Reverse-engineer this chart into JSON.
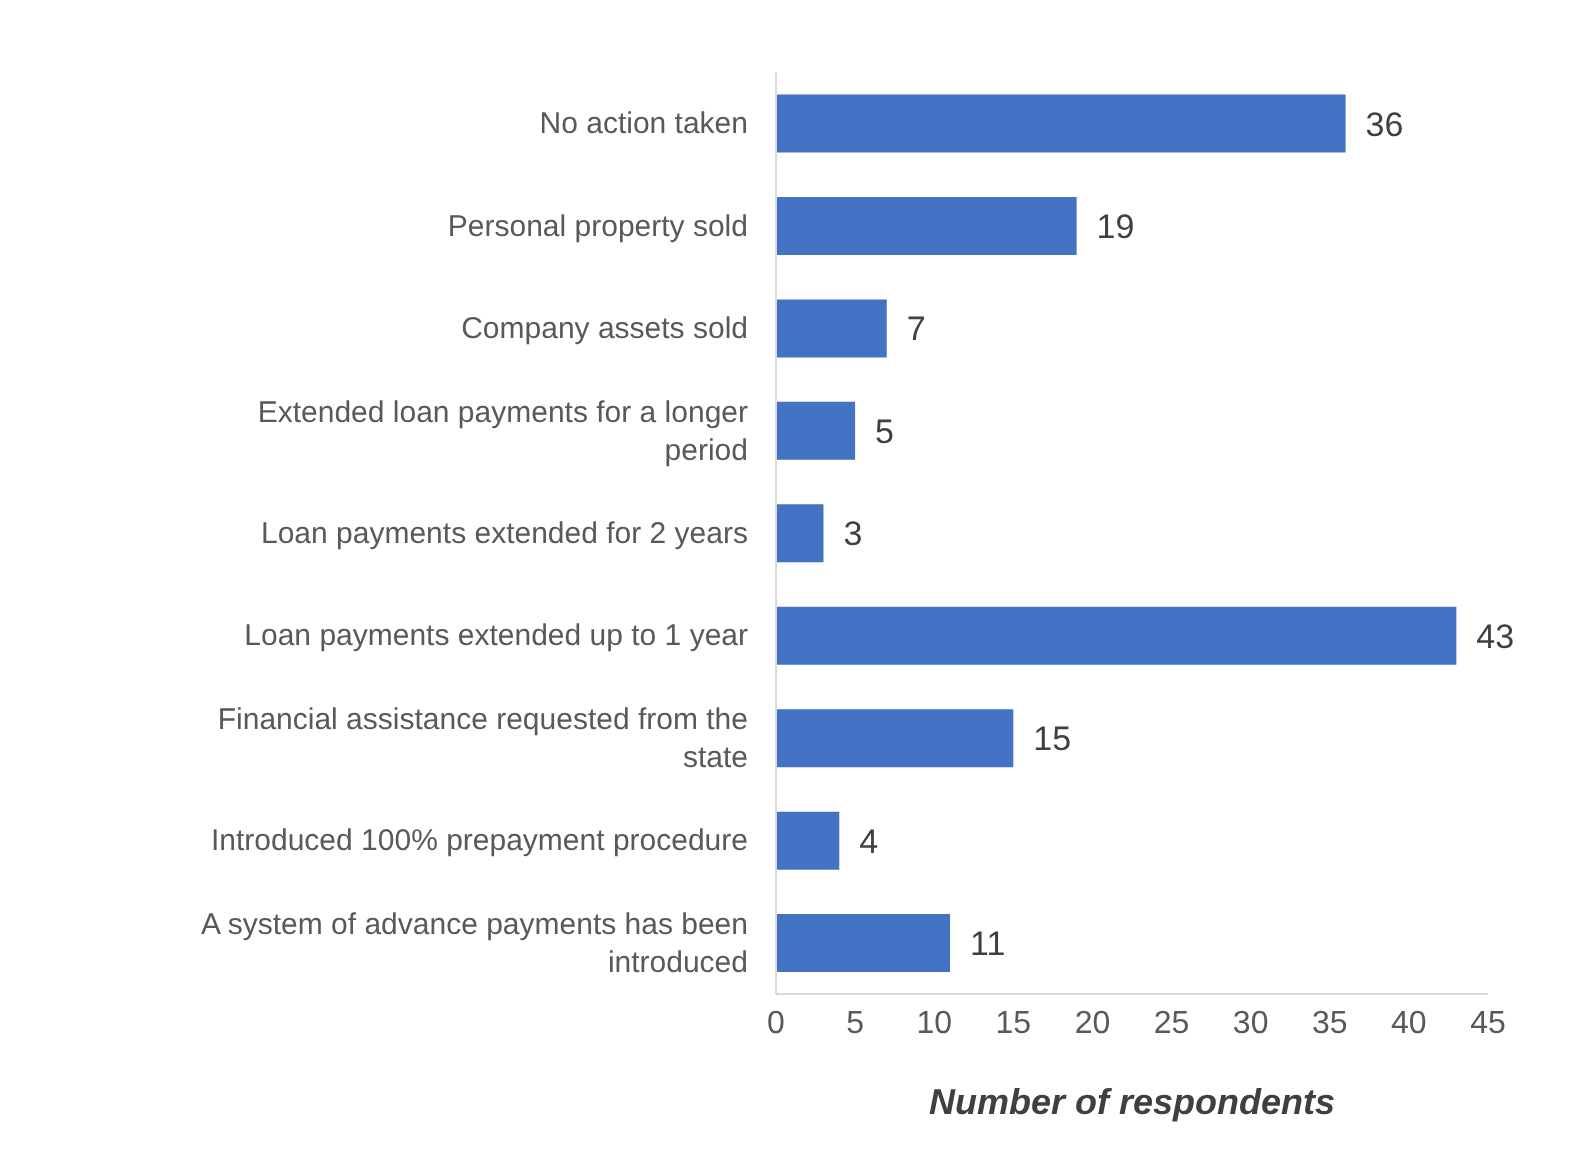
{
  "chart_data": {
    "type": "bar",
    "orientation": "horizontal",
    "xlabel": "Number of respondents",
    "categories": [
      "No action taken",
      "Personal property sold",
      "Company assets sold",
      "Extended loan payments for a longer period",
      "Loan payments extended for 2 years",
      "Loan payments extended up to 1 year",
      "Financial assistance requested from the state",
      "Introduced 100% prepayment procedure",
      "A system of advance payments has been introduced"
    ],
    "values": [
      36,
      19,
      7,
      5,
      3,
      43,
      15,
      4,
      11
    ],
    "color": "#4472c4",
    "data_labels": true,
    "xlim": [
      0,
      45
    ],
    "xticks": [
      0,
      5,
      10,
      15,
      20,
      25,
      30,
      35,
      40,
      45
    ],
    "grid": false,
    "legend": false
  }
}
